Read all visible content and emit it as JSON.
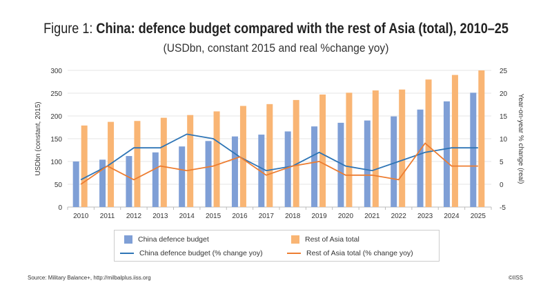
{
  "chart_data": {
    "type": "bar",
    "title_prefix": "Figure 1: ",
    "title": "China: defence budget compared with the rest of Asia (total), 2010–25",
    "subtitle": "(USDbn, constant 2015 and real %change yoy)",
    "ylabel": "USDbn (constant, 2015)",
    "y2label": "Year-on-year % change  (real)",
    "ylim": [
      0,
      300
    ],
    "y2lim": [
      -5,
      25
    ],
    "yticks": [
      "0",
      "50",
      "100",
      "150",
      "200",
      "250",
      "300"
    ],
    "y2ticks": [
      "-5",
      "0",
      "5",
      "10",
      "15",
      "20",
      "25"
    ],
    "categories": [
      "2010",
      "2011",
      "2012",
      "2013",
      "2014",
      "2015",
      "2016",
      "2017",
      "2018",
      "2019",
      "2020",
      "2021",
      "2022",
      "2023",
      "2024",
      "2025"
    ],
    "series": [
      {
        "name": "China defence budget",
        "kind": "bar",
        "axis": "left",
        "color": "#7f9fd6",
        "values": [
          100,
          104,
          112,
          120,
          133,
          145,
          155,
          159,
          166,
          177,
          185,
          190,
          199,
          214,
          232,
          251
        ]
      },
      {
        "name": "Rest of Asia total",
        "kind": "bar",
        "axis": "left",
        "color": "#f9b574",
        "values": [
          179,
          187,
          189,
          196,
          202,
          210,
          222,
          226,
          235,
          247,
          251,
          256,
          258,
          280,
          290,
          300
        ]
      },
      {
        "name": "China defence budget (% change yoy)",
        "kind": "line",
        "axis": "right",
        "color": "#2e75b6",
        "values": [
          1,
          4,
          8,
          8,
          11,
          10,
          6,
          3,
          4,
          7,
          4,
          3,
          5,
          7,
          8,
          8
        ]
      },
      {
        "name": "Rest of Asia total (% change yoy)",
        "kind": "line",
        "axis": "right",
        "color": "#ed7d31",
        "values": [
          0,
          4,
          1,
          4,
          3,
          4,
          6,
          2,
          4,
          5,
          2,
          2,
          1,
          9,
          4,
          4
        ]
      }
    ],
    "grid": true,
    "legend": "bottom"
  },
  "footer": {
    "source": "Source: Military Balance+, http://milbalplus.iiss.org",
    "copyright": "©IISS"
  }
}
